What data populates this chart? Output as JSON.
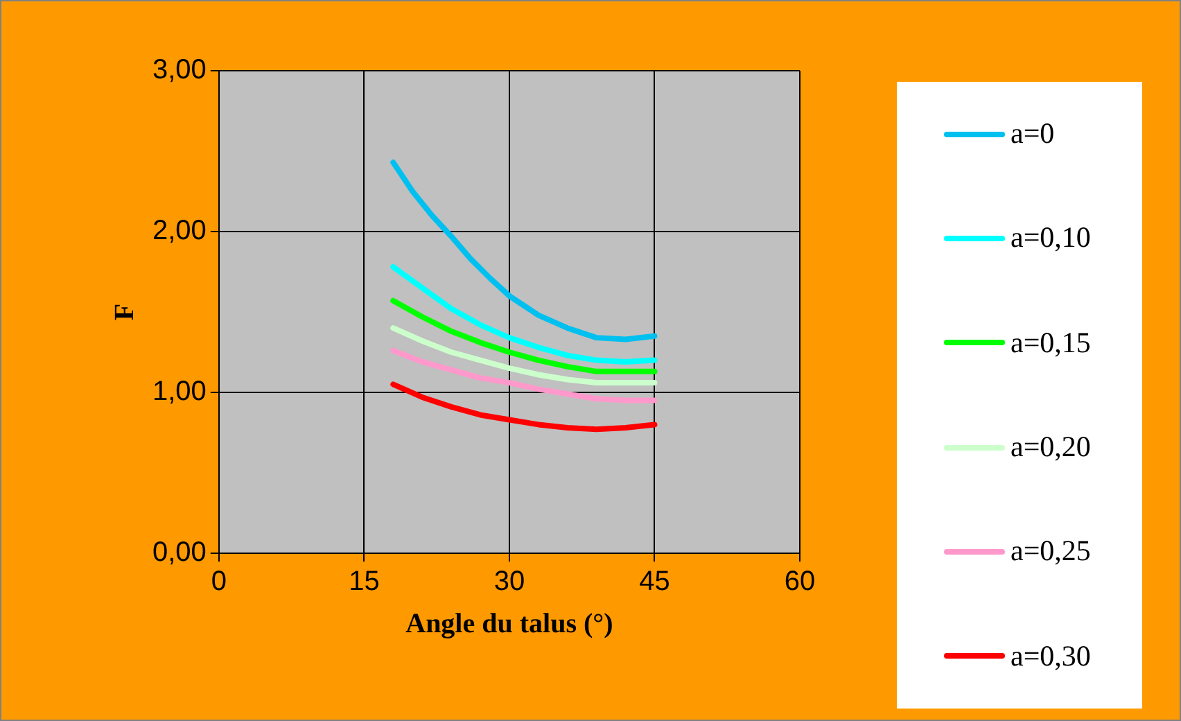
{
  "chart_data": {
    "type": "line",
    "xlabel": "Angle du talus (°)",
    "ylabel": "F",
    "x": [
      18,
      21,
      24,
      27,
      30,
      33,
      36,
      39,
      42,
      45
    ],
    "series": [
      {
        "name": "a=0",
        "color": "#00c0f0",
        "x": [
          18,
          20,
          22,
          24,
          26,
          28,
          30,
          33,
          36,
          39,
          42,
          45
        ],
        "values": [
          2.43,
          2.25,
          2.1,
          1.97,
          1.83,
          1.71,
          1.6,
          1.48,
          1.4,
          1.34,
          1.33,
          1.35
        ]
      },
      {
        "name": "a=0,10",
        "color": "#00ffff",
        "values": [
          1.78,
          1.65,
          1.52,
          1.42,
          1.34,
          1.28,
          1.23,
          1.2,
          1.19,
          1.2
        ]
      },
      {
        "name": "a=0,15",
        "color": "#00ff00",
        "values": [
          1.57,
          1.47,
          1.38,
          1.31,
          1.25,
          1.2,
          1.16,
          1.13,
          1.13,
          1.13
        ]
      },
      {
        "name": "a=0,20",
        "color": "#ccffcc",
        "values": [
          1.4,
          1.32,
          1.25,
          1.2,
          1.15,
          1.11,
          1.08,
          1.06,
          1.06,
          1.06
        ]
      },
      {
        "name": "a=0,25",
        "color": "#ff99cc",
        "values": [
          1.26,
          1.19,
          1.14,
          1.09,
          1.06,
          1.02,
          0.99,
          0.96,
          0.95,
          0.95
        ]
      },
      {
        "name": "a=0,30",
        "color": "#ff0000",
        "values": [
          1.05,
          0.97,
          0.91,
          0.86,
          0.83,
          0.8,
          0.78,
          0.77,
          0.78,
          0.8
        ]
      }
    ],
    "xlim": [
      0,
      60
    ],
    "xticks": [
      0,
      15,
      30,
      45,
      60
    ],
    "ylim": [
      0,
      3
    ],
    "yticks": [
      {
        "value": 0,
        "label": "0,00"
      },
      {
        "value": 1,
        "label": "1,00"
      },
      {
        "value": 2,
        "label": "2,00"
      },
      {
        "value": 3,
        "label": "3,00"
      }
    ],
    "grid": true,
    "legend": "right",
    "marker": "none",
    "line_style": "solid"
  }
}
